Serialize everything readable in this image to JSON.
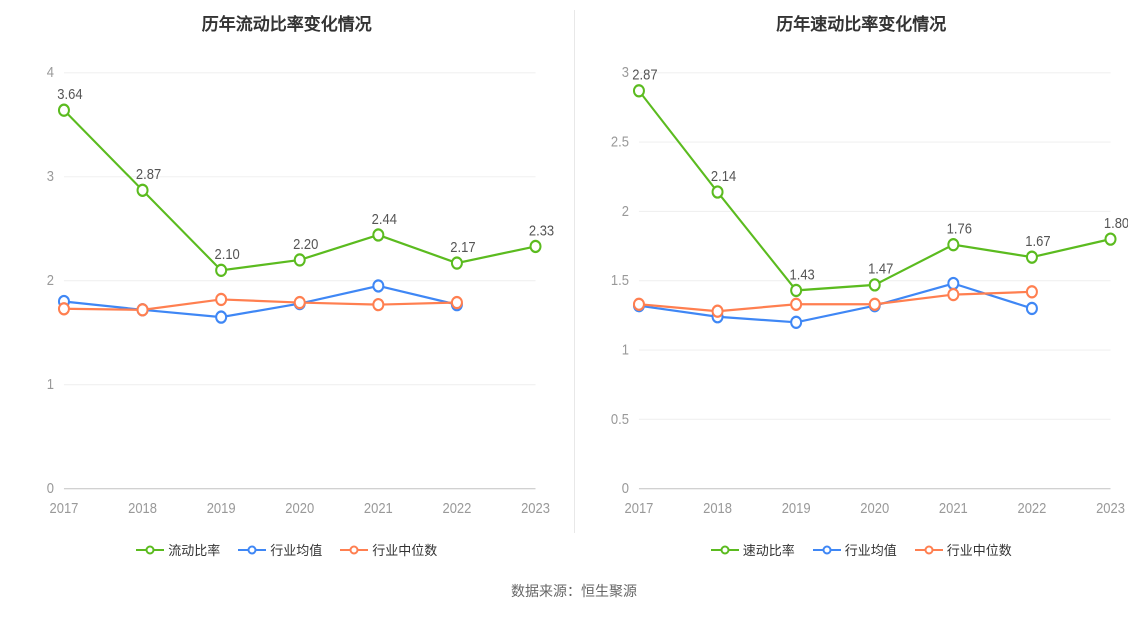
{
  "source_note": "数据来源：恒生聚源",
  "colors": {
    "text_title": "#333333",
    "text_axis": "#999999",
    "text_label": "#555555",
    "text_source": "#666666",
    "grid": "#f0f0f0",
    "axis": "#cccccc",
    "divider": "#e8e8e8",
    "background": "#ffffff"
  },
  "charts": [
    {
      "key": "current_ratio",
      "title": "历年流动比率变化情况",
      "type": "line",
      "categories": [
        "2017",
        "2018",
        "2019",
        "2020",
        "2021",
        "2022",
        "2023"
      ],
      "ylim": [
        0,
        4
      ],
      "ytick_step": 1,
      "yticks": [
        0,
        1,
        2,
        3,
        4
      ],
      "series": [
        {
          "name": "流动比率",
          "color": "#5bbb1f",
          "line_width": 2,
          "marker": "circle-open",
          "marker_size": 10,
          "show_labels": true,
          "label_precision": 2,
          "values": [
            3.64,
            2.87,
            2.1,
            2.2,
            2.44,
            2.17,
            2.33
          ]
        },
        {
          "name": "行业均值",
          "color": "#3f87f5",
          "line_width": 2,
          "marker": "circle-open",
          "marker_size": 10,
          "show_labels": false,
          "values": [
            1.8,
            1.72,
            1.65,
            1.78,
            1.95,
            1.77,
            null
          ]
        },
        {
          "name": "行业中位数",
          "color": "#ff7f50",
          "line_width": 2,
          "marker": "circle-open",
          "marker_size": 10,
          "show_labels": false,
          "values": [
            1.73,
            1.72,
            1.82,
            1.79,
            1.77,
            1.79,
            null
          ]
        }
      ],
      "title_fontsize": 17,
      "label_fontsize": 13,
      "tick_fontsize": 13,
      "grid_color": "#f0f0f0",
      "background_color": "#ffffff"
    },
    {
      "key": "quick_ratio",
      "title": "历年速动比率变化情况",
      "type": "line",
      "categories": [
        "2017",
        "2018",
        "2019",
        "2020",
        "2021",
        "2022",
        "2023"
      ],
      "ylim": [
        0,
        3
      ],
      "ytick_step": 0.5,
      "yticks": [
        0,
        0.5,
        1,
        1.5,
        2,
        2.5,
        3
      ],
      "series": [
        {
          "name": "速动比率",
          "color": "#5bbb1f",
          "line_width": 2,
          "marker": "circle-open",
          "marker_size": 10,
          "show_labels": true,
          "label_precision": 2,
          "values": [
            2.87,
            2.14,
            1.43,
            1.47,
            1.76,
            1.67,
            1.8
          ]
        },
        {
          "name": "行业均值",
          "color": "#3f87f5",
          "line_width": 2,
          "marker": "circle-open",
          "marker_size": 10,
          "show_labels": false,
          "values": [
            1.32,
            1.24,
            1.2,
            1.32,
            1.48,
            1.3,
            null
          ]
        },
        {
          "name": "行业中位数",
          "color": "#ff7f50",
          "line_width": 2,
          "marker": "circle-open",
          "marker_size": 10,
          "show_labels": false,
          "values": [
            1.33,
            1.28,
            1.33,
            1.33,
            1.4,
            1.42,
            null
          ]
        }
      ],
      "title_fontsize": 17,
      "label_fontsize": 13,
      "tick_fontsize": 13,
      "grid_color": "#f0f0f0",
      "background_color": "#ffffff"
    }
  ]
}
